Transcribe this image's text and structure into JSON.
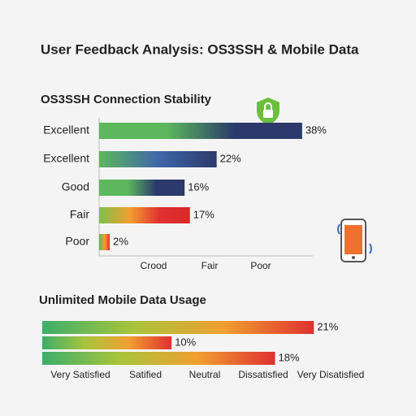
{
  "title": "User Feedback Analysis: OS3SSH & Mobile Data",
  "chart_data": [
    {
      "type": "hbar",
      "title": "OS3SSH Connection Stability",
      "categories": [
        "Excellent",
        "Excellent",
        "Good",
        "Fair",
        "Poor"
      ],
      "values": [
        38,
        22,
        16,
        17,
        2
      ],
      "value_labels": [
        "38%",
        "22%",
        "16%",
        "17%",
        "2%"
      ],
      "bar_colors": [
        [
          "#5cb85c",
          "#5cb85c",
          "#2b3a6b",
          "#2b3a6b"
        ],
        [
          "#5cb85c",
          "#3f67a8",
          "#2b3a6b"
        ],
        [
          "#5cb85c",
          "#5cb85c",
          "#2b3a6b",
          "#2b3a6b"
        ],
        [
          "#7cc04c",
          "#f0a030",
          "#e03030",
          "#d82828"
        ],
        [
          "#5cb85c",
          "#f0a030",
          "#e03030"
        ]
      ],
      "x_labels": [
        "Crood",
        "Fair",
        "Poor"
      ],
      "xlim": [
        0,
        40
      ]
    },
    {
      "type": "hbar",
      "title": "Unlimited Mobile Data Usage",
      "categories": [
        null,
        null,
        null
      ],
      "values": [
        21,
        10,
        18
      ],
      "value_labels": [
        "21%",
        "10%",
        "18%"
      ],
      "bar_colors": [
        [
          "#3cae6a",
          "#a8c43c",
          "#f0a030",
          "#e03030"
        ],
        [
          "#3cae6a",
          "#a8c43c",
          "#f0a030",
          "#e03030"
        ],
        [
          "#3cae6a",
          "#a8c43c",
          "#f0a030",
          "#e03030"
        ]
      ],
      "x_labels": [
        "Very Satisfied",
        "Satified",
        "Neutral",
        "Dissatisfied",
        "Very Disatisfied"
      ],
      "xlim": [
        0,
        25
      ]
    }
  ]
}
